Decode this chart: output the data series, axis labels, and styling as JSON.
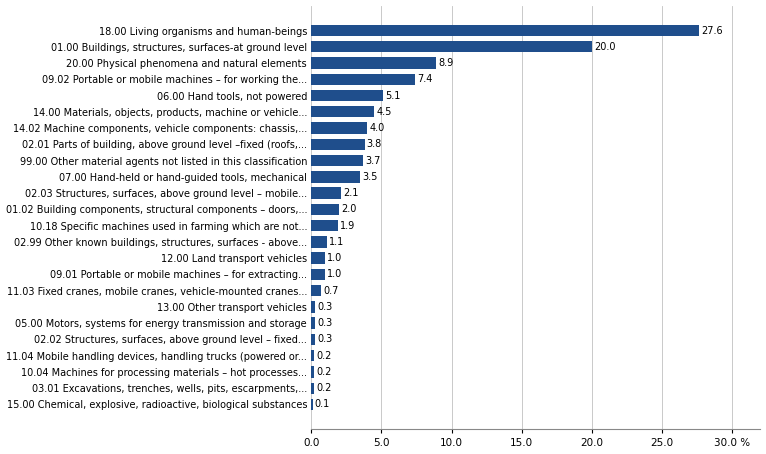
{
  "categories": [
    "15.00 Chemical, explosive, radioactive, biological substances",
    "03.01 Excavations, trenches, wells, pits, escarpments,...",
    "10.04 Machines for processing materials – hot processes...",
    "11.04 Mobile handling devices, handling trucks (powered or...",
    "02.02 Structures, surfaces, above ground level – fixed...",
    "05.00 Motors, systems for energy transmission and storage",
    "13.00 Other transport vehicles",
    "11.03 Fixed cranes, mobile cranes, vehicle-mounted cranes...",
    "09.01 Portable or mobile machines – for extracting...",
    "12.00 Land transport vehicles",
    "02.99 Other known buildings, structures, surfaces - above...",
    "10.18 Specific machines used in farming which are not...",
    "01.02 Building components, structural components – doors,...",
    "02.03 Structures, surfaces, above ground level – mobile...",
    "07.00 Hand-held or hand-guided tools, mechanical",
    "99.00 Other material agents not listed in this classification",
    "02.01 Parts of building, above ground level –fixed (roofs,...",
    "14.02 Machine components, vehicle components: chassis,...",
    "14.00 Materials, objects, products, machine or vehicle...",
    "06.00 Hand tools, not powered",
    "09.02 Portable or mobile machines – for working the...",
    "20.00 Physical phenomena and natural elements",
    "01.00 Buildings, structures, surfaces-at ground level",
    "18.00 Living organisms and human-beings"
  ],
  "values": [
    0.1,
    0.2,
    0.2,
    0.2,
    0.3,
    0.3,
    0.3,
    0.7,
    1.0,
    1.0,
    1.1,
    1.9,
    2.0,
    2.1,
    3.5,
    3.7,
    3.8,
    4.0,
    4.5,
    5.1,
    7.4,
    8.9,
    20.0,
    27.6
  ],
  "value_str": [
    "0.1",
    "0.2",
    "0.2",
    "0.2",
    "0.3",
    "0.3",
    "0.3",
    "0.7",
    "1.0",
    "1.0",
    "1.1",
    "1.9",
    "2.0",
    "2.1",
    "3.5",
    "3.7",
    "3.8",
    "4.0",
    "4.5",
    "5.1",
    "7.4",
    "8.9",
    "20.0",
    "27.6"
  ],
  "bar_color": "#1f4e8c",
  "xlim": [
    0,
    32
  ],
  "xticks": [
    0.0,
    5.0,
    10.0,
    15.0,
    20.0,
    25.0,
    30.0
  ],
  "xtick_labels": [
    "0.0",
    "5.0",
    "10.0",
    "15.0",
    "20.0",
    "25.0",
    "30.0 %"
  ],
  "label_fontsize": 7.0,
  "value_fontsize": 7.0,
  "tick_fontsize": 7.5
}
